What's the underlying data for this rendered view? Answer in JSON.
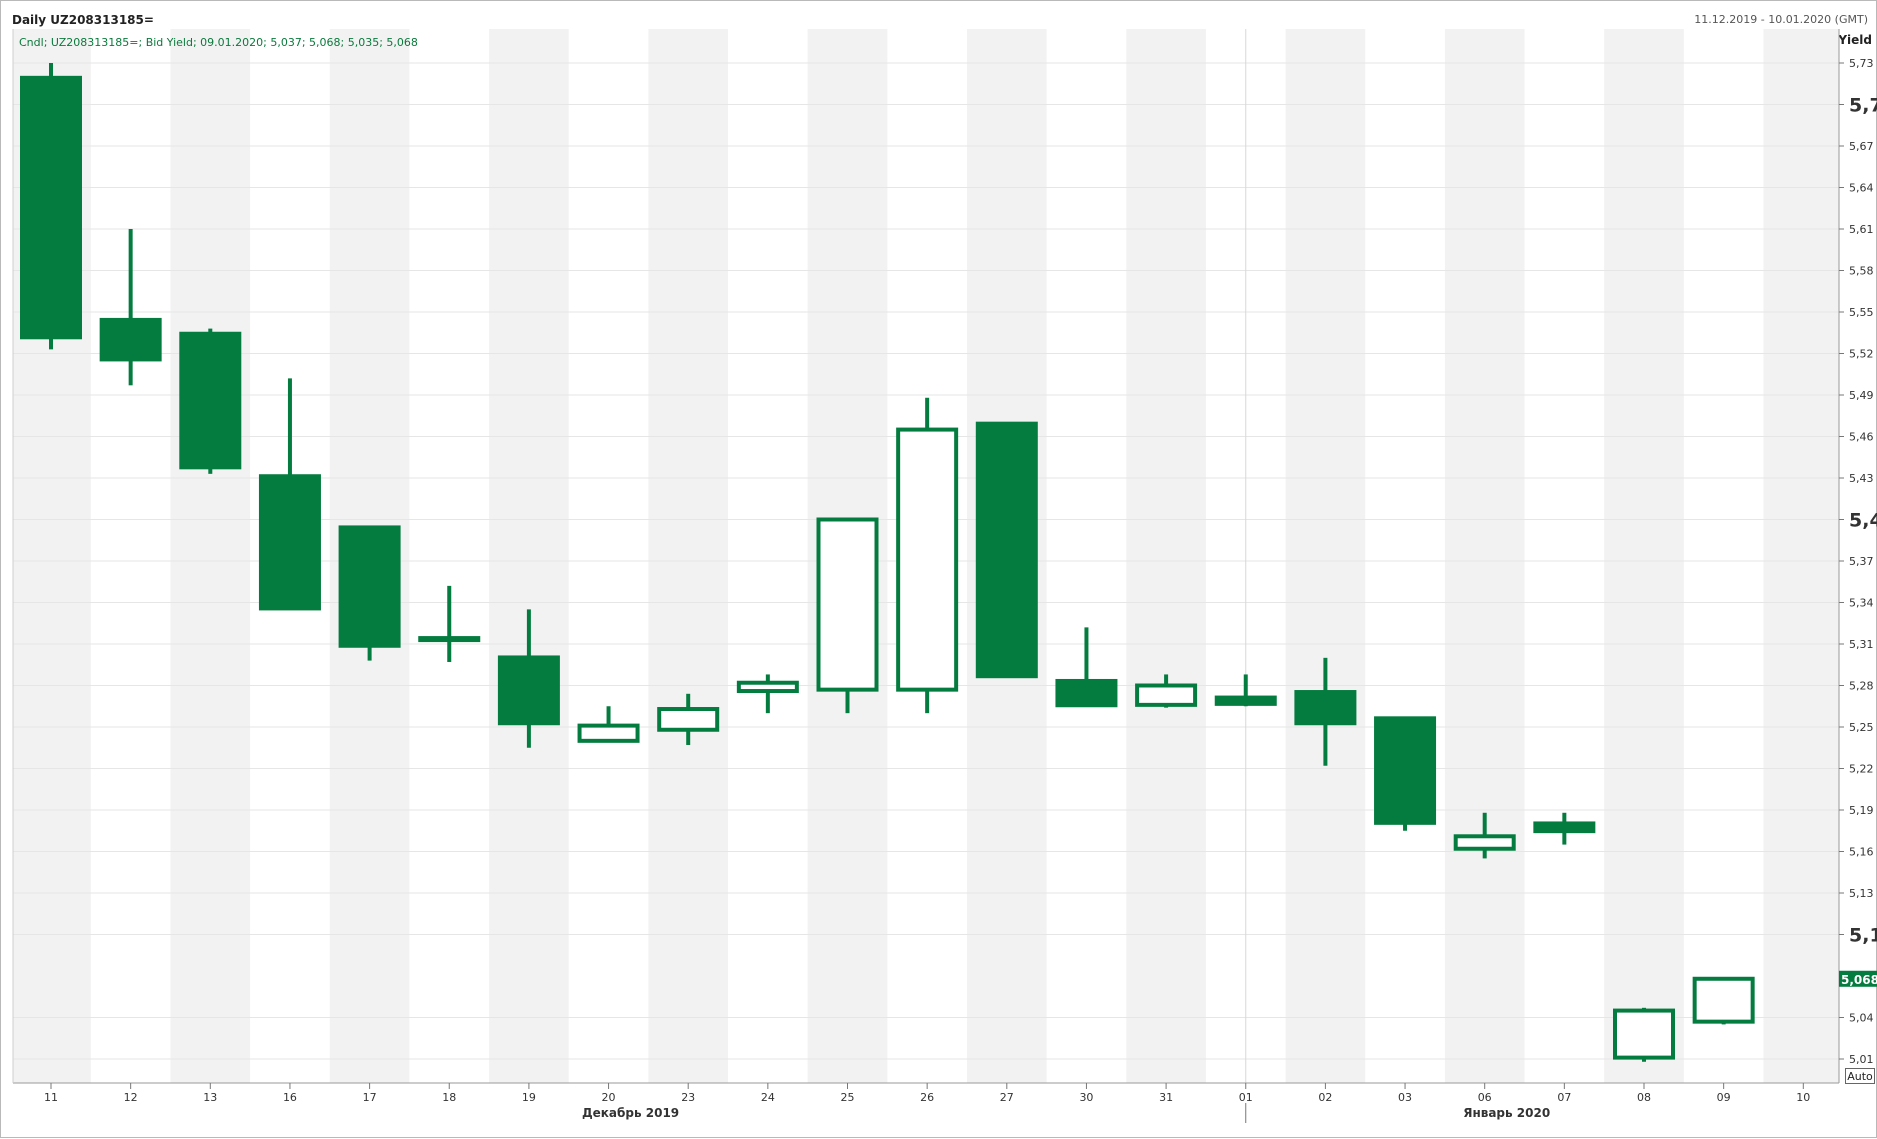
{
  "header": {
    "title": "Daily UZ208313185=",
    "date_range": "11.12.2019 - 10.01.2020 (GMT)",
    "axis_title": "Yield",
    "legend": "Cndl; UZ208313185=; Bid Yield; 09.01.2020; 5,037; 5,068; 5,035; 5,068",
    "last_value_label": "5,068",
    "auto_button": "Auto"
  },
  "colors": {
    "candle": "#047c3f",
    "band": "#f2f2f2",
    "grid": "#e6e6e6",
    "last_value_bg": "#047c3f"
  },
  "chart_data": {
    "type": "candlestick",
    "series_name": "Bid Yield",
    "categories": [
      "11",
      "12",
      "13",
      "16",
      "17",
      "18",
      "19",
      "20",
      "23",
      "24",
      "25",
      "26",
      "27",
      "30",
      "31",
      "01",
      "02",
      "03",
      "06",
      "07",
      "08",
      "09",
      "10"
    ],
    "month_labels": [
      {
        "label": "Декабрь 2019",
        "after_category": "20"
      },
      {
        "label": "Январь 2020",
        "after_category": "06"
      }
    ],
    "candles": [
      {
        "date": "11",
        "open": 5.72,
        "high": 5.73,
        "low": 5.523,
        "close": 5.531
      },
      {
        "date": "12",
        "open": 5.545,
        "high": 5.61,
        "low": 5.497,
        "close": 5.515
      },
      {
        "date": "13",
        "open": 5.535,
        "high": 5.538,
        "low": 5.433,
        "close": 5.437
      },
      {
        "date": "16",
        "open": 5.432,
        "high": 5.502,
        "low": 5.335,
        "close": 5.335
      },
      {
        "date": "17",
        "open": 5.395,
        "high": 5.395,
        "low": 5.298,
        "close": 5.308
      },
      {
        "date": "18",
        "open": 5.315,
        "high": 5.352,
        "low": 5.297,
        "close": 5.314
      },
      {
        "date": "19",
        "open": 5.301,
        "high": 5.335,
        "low": 5.235,
        "close": 5.252
      },
      {
        "date": "20",
        "open": 5.24,
        "high": 5.265,
        "low": 5.24,
        "close": 5.251
      },
      {
        "date": "23",
        "open": 5.248,
        "high": 5.274,
        "low": 5.237,
        "close": 5.263
      },
      {
        "date": "24",
        "open": 5.276,
        "high": 5.288,
        "low": 5.26,
        "close": 5.282
      },
      {
        "date": "25",
        "open": 5.277,
        "high": 5.401,
        "low": 5.26,
        "close": 5.4
      },
      {
        "date": "26",
        "open": 5.277,
        "high": 5.488,
        "low": 5.26,
        "close": 5.465
      },
      {
        "date": "27",
        "open": 5.47,
        "high": 5.47,
        "low": 5.286,
        "close": 5.286
      },
      {
        "date": "30",
        "open": 5.284,
        "high": 5.322,
        "low": 5.265,
        "close": 5.265
      },
      {
        "date": "31",
        "open": 5.266,
        "high": 5.288,
        "low": 5.264,
        "close": 5.28
      },
      {
        "date": "01",
        "open": 5.272,
        "high": 5.288,
        "low": 5.265,
        "close": 5.266
      },
      {
        "date": "02",
        "open": 5.276,
        "high": 5.3,
        "low": 5.222,
        "close": 5.252
      },
      {
        "date": "03",
        "open": 5.257,
        "high": 5.257,
        "low": 5.175,
        "close": 5.18
      },
      {
        "date": "06",
        "open": 5.162,
        "high": 5.188,
        "low": 5.155,
        "close": 5.171
      },
      {
        "date": "07",
        "open": 5.181,
        "high": 5.188,
        "low": 5.165,
        "close": 5.174
      },
      {
        "date": "08",
        "open": 5.011,
        "high": 5.047,
        "low": 5.008,
        "close": 5.045
      },
      {
        "date": "09",
        "open": 5.037,
        "high": 5.068,
        "low": 5.035,
        "close": 5.068
      }
    ],
    "last_value": 5.068,
    "y_axis_ticks": [
      "5,01",
      "5,04",
      "5,1",
      "5,13",
      "5,16",
      "5,19",
      "5,22",
      "5,25",
      "5,28",
      "5,31",
      "5,34",
      "5,37",
      "5,4",
      "5,43",
      "5,46",
      "5,49",
      "5,52",
      "5,55",
      "5,58",
      "5,61",
      "5,64",
      "5,67",
      "5,7",
      "5,73"
    ],
    "y_axis_major_ticks": [
      "5,1",
      "5,4",
      "5,7"
    ],
    "ylim": [
      4.995,
      5.757
    ],
    "ylabel": "Yield",
    "grid": true,
    "alternating_day_bands": true
  }
}
